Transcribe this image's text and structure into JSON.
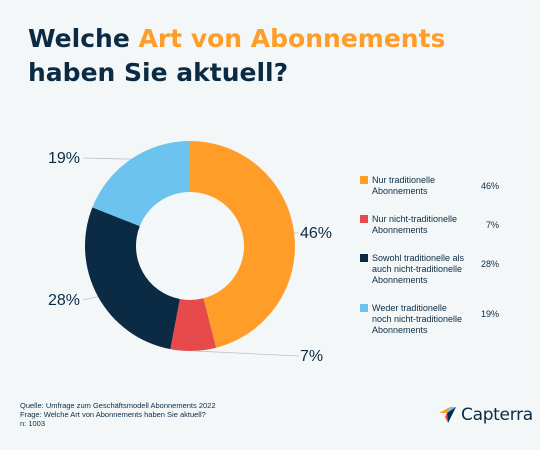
{
  "title": {
    "part1": "Welche ",
    "accent": "Art von Abonnements",
    "part2": " haben Sie aktuell?"
  },
  "chart_data": {
    "type": "pie",
    "title": "Welche Art von Abonnements haben Sie aktuell?",
    "unit": "%",
    "slices": [
      {
        "label": "Nur traditionelle Abonnements",
        "value": 46,
        "display": "46%",
        "color": "#ff9d28"
      },
      {
        "label": "Nur nicht-traditionelle Abonnements",
        "value": 7,
        "display": "7%",
        "color": "#e64a4a"
      },
      {
        "label": "Sowohl traditionelle als auch nicht-traditionelle Abonnements",
        "value": 28,
        "display": "28%",
        "color": "#0b2b45"
      },
      {
        "label": "Weder traditionelle noch nicht-traditionelle Abonnements",
        "value": 19,
        "display": "19%",
        "color": "#6cc3ee"
      }
    ],
    "legend_position": "right"
  },
  "footer": {
    "source": "Quelle: Umfrage zum Geschäftsmodell Abonnements 2022",
    "question": "Frage: Welche Art von Abonnements haben Sie aktuell?",
    "sample": "n: 1003"
  },
  "brand": {
    "name": "Capterra",
    "icon": "capterra-logo-icon",
    "colors": [
      "#ff9d28",
      "#6cc3ee",
      "#0b2b45",
      "#e64a4a"
    ]
  }
}
